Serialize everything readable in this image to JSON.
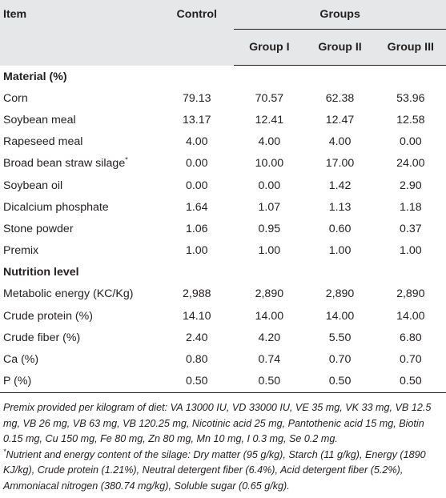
{
  "header": {
    "item": "Item",
    "control": "Control",
    "groups": "Groups",
    "group_labels": [
      "Group I",
      "Group II",
      "Group III"
    ]
  },
  "material_section": "Material (%)",
  "material_rows": [
    {
      "item": "Corn",
      "control": "79.13",
      "g1": "70.57",
      "g2": "62.38",
      "g3": "53.96"
    },
    {
      "item": "Soybean meal",
      "control": "13.17",
      "g1": "12.41",
      "g2": "12.47",
      "g3": "12.58"
    },
    {
      "item": "Rapeseed meal",
      "control": "4.00",
      "g1": "4.00",
      "g2": "4.00",
      "g3": "0.00"
    },
    {
      "item": "Broad bean straw silage*",
      "control": "0.00",
      "g1": "10.00",
      "g2": "17.00",
      "g3": "24.00"
    },
    {
      "item": "Soybean oil",
      "control": "0.00",
      "g1": "0.00",
      "g2": "1.42",
      "g3": "2.90"
    },
    {
      "item": "Dicalcium phosphate",
      "control": "1.64",
      "g1": "1.07",
      "g2": "1.13",
      "g3": "1.18"
    },
    {
      "item": "Stone powder",
      "control": "1.06",
      "g1": "0.95",
      "g2": "0.60",
      "g3": "0.37"
    },
    {
      "item": "Premix",
      "control": "1.00",
      "g1": "1.00",
      "g2": "1.00",
      "g3": "1.00"
    }
  ],
  "nutrition_section": "Nutrition level",
  "nutrition_rows": [
    {
      "item": "Metabolic energy (KC/Kg)",
      "control": "2,988",
      "g1": "2,890",
      "g2": "2,890",
      "g3": "2,890"
    },
    {
      "item": "Crude protein (%)",
      "control": "14.10",
      "g1": "14.00",
      "g2": "14.00",
      "g3": "14.00"
    },
    {
      "item": "Crude fiber (%)",
      "control": "2.40",
      "g1": "4.20",
      "g2": "5.50",
      "g3": "6.80"
    },
    {
      "item": "Ca (%)",
      "control": "0.80",
      "g1": "0.74",
      "g2": "0.70",
      "g3": "0.70"
    },
    {
      "item": "P (%)",
      "control": "0.50",
      "g1": "0.50",
      "g2": "0.50",
      "g3": "0.50"
    }
  ],
  "footnotes": {
    "premix": "Premix provided per kilogram of diet: VA 13000 IU, VD 33000 IU, VE 35 mg, VK 33 mg, VB 12.5 mg, VB 26 mg, VB 63 mg, VB 120.25 mg, Nicotinic acid 25 mg, Pantothenic acid 15 mg, Biotin 0.15 mg, Cu 150 mg, Fe 80 mg, Zn 80 mg, Mn 10 mg, I 0.3 mg, Se 0.2 mg.",
    "silage_mark": "*",
    "silage": "Nutrient and energy content of the silage: Dry matter (95 g/kg), Starch (11 g/kg), Energy (1890 KJ/kg), Crude protein (1.21%), Neutral detergent fiber (6.4%), Acid detergent fiber (5.2%), Ammoniacal nitrogen (380.74 mg/kg), Soluble sugar (0.65 g/kg)."
  }
}
